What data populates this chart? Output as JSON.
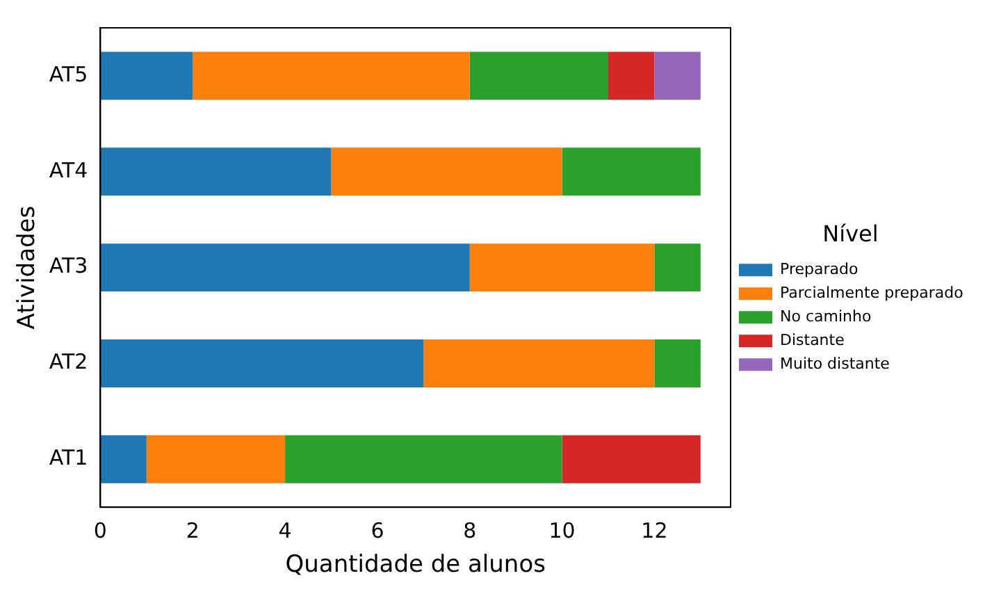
{
  "chart_data": {
    "type": "bar",
    "orientation": "horizontal",
    "stacked": true,
    "xlabel": "Quantidade de alunos",
    "ylabel": "Atividades",
    "legend_title": "Nível",
    "legend": "right",
    "grid": false,
    "categories": [
      "AT5",
      "AT4",
      "AT3",
      "AT2",
      "AT1"
    ],
    "xlim": [
      0,
      13.65
    ],
    "xticks": [
      0,
      2,
      4,
      6,
      8,
      10,
      12
    ],
    "series": [
      {
        "name": "Preparado",
        "color": "#1f77b4",
        "values": [
          2,
          5,
          8,
          7,
          1
        ]
      },
      {
        "name": "Parcialmente preparado",
        "color": "#ff7f0e",
        "values": [
          6,
          5,
          4,
          5,
          3
        ]
      },
      {
        "name": "No caminho",
        "color": "#2ca02c",
        "values": [
          3,
          3,
          1,
          1,
          6
        ]
      },
      {
        "name": "Distante",
        "color": "#d62728",
        "values": [
          1,
          0,
          0,
          0,
          3
        ]
      },
      {
        "name": "Muito distante",
        "color": "#9467bd",
        "values": [
          1,
          0,
          0,
          0,
          0
        ]
      }
    ]
  }
}
